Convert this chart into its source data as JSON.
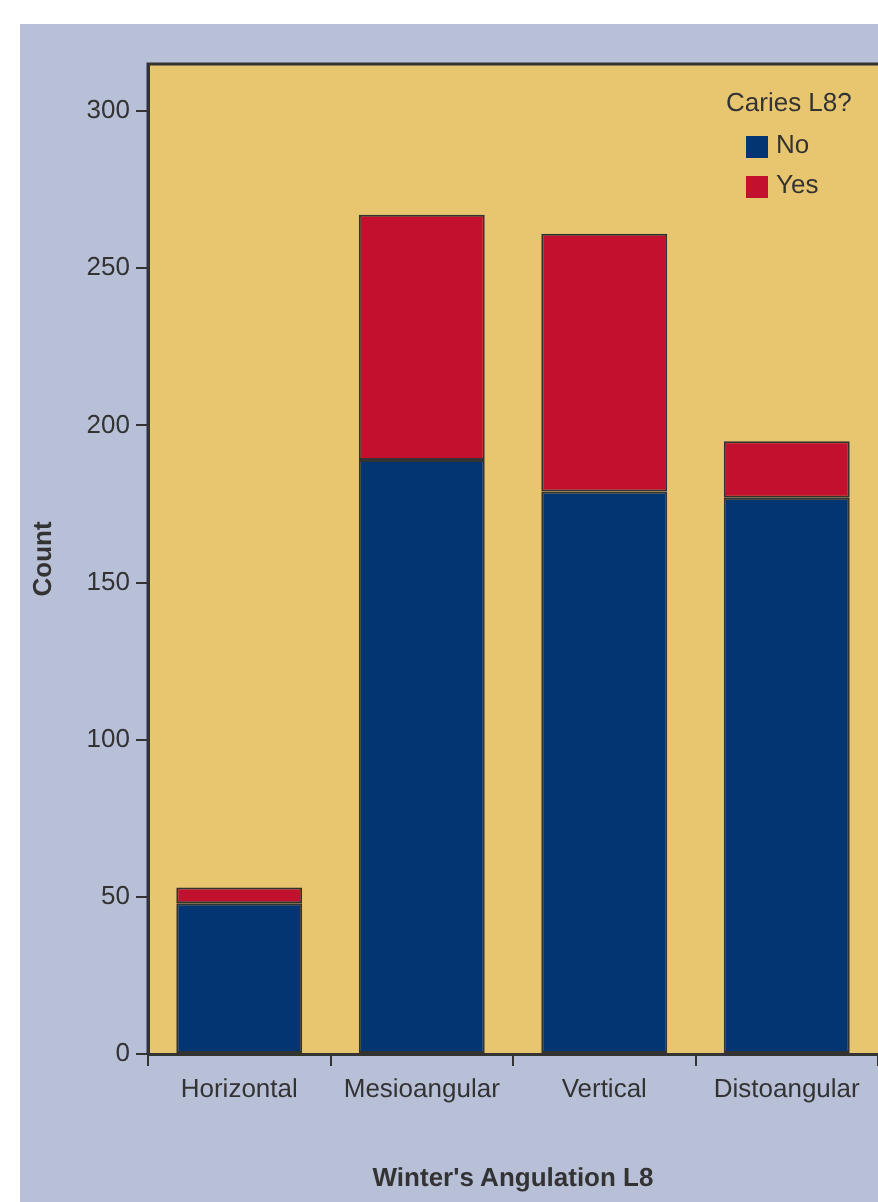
{
  "chart_data": {
    "type": "bar",
    "stacked": true,
    "xlabel": "Winter's Angulation L8",
    "ylabel": "Count",
    "legend_title": "Caries L8?",
    "legend": "top right",
    "grid": false,
    "categories": [
      "Horizontal",
      "Mesioangular",
      "Vertical",
      "Distoangular"
    ],
    "series": [
      {
        "name": "No",
        "color": "#023572",
        "values": [
          48,
          189,
          179,
          177
        ]
      },
      {
        "name": "Yes",
        "color": "#c2102e",
        "values": [
          5,
          78,
          82,
          18
        ]
      }
    ],
    "ylim": [
      0,
      315
    ],
    "yticks": [
      0,
      50,
      100,
      150,
      200,
      250,
      300
    ]
  }
}
